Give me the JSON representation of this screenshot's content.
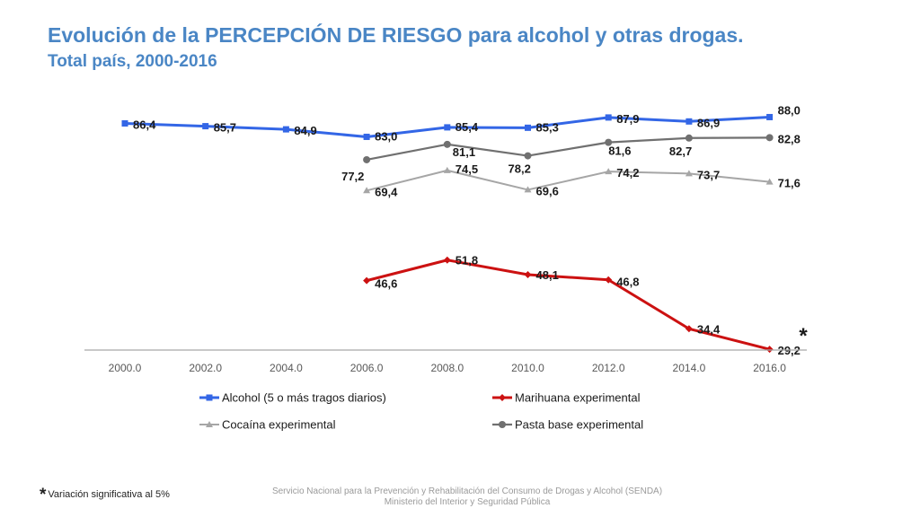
{
  "header": {
    "title": "Evolución de la PERCEPCIÓN DE RIESGO para alcohol y otras drogas.",
    "subtitle": "Total país, 2000-2016"
  },
  "chart_data": {
    "type": "line",
    "title": "Evolución de la PERCEPCIÓN DE RIESGO para alcohol y otras drogas.",
    "subtitle": "Total país, 2000-2016",
    "categories": [
      "2000.0",
      "2002.0",
      "2004.0",
      "2006.0",
      "2008.0",
      "2010.0",
      "2012.0",
      "2014.0",
      "2016.0"
    ],
    "xlabel": "",
    "ylabel": "",
    "ylim": [
      25,
      90
    ],
    "grid": false,
    "legend_position": "bottom",
    "series": [
      {
        "name": "Alcohol (5 o más tragos diarios)",
        "color": "#3366e6",
        "marker": "square",
        "values": [
          86.4,
          85.7,
          84.9,
          83.0,
          85.4,
          85.3,
          87.9,
          86.9,
          88.0
        ],
        "labels": [
          "86,4",
          "85,7",
          "84,9",
          "83,0",
          "85,4",
          "85,3",
          "87,9",
          "86,9",
          "88,0"
        ]
      },
      {
        "name": "Marihuana experimental",
        "color": "#cc1111",
        "marker": "diamond",
        "values": [
          null,
          null,
          null,
          46.6,
          51.8,
          48.1,
          46.8,
          34.4,
          29.2
        ],
        "labels": [
          null,
          null,
          null,
          "46,6",
          "51,8",
          "48,1",
          "46,8",
          "34,4",
          "29,2"
        ]
      },
      {
        "name": "Cocaína experimental",
        "color": "#a6a6a6",
        "marker": "triangle",
        "values": [
          null,
          null,
          null,
          69.4,
          74.5,
          69.6,
          74.2,
          73.7,
          71.6
        ],
        "labels": [
          null,
          null,
          null,
          "69,4",
          "74,5",
          "69,6",
          "74,2",
          "73,7",
          "71,6"
        ]
      },
      {
        "name": "Pasta base experimental",
        "color": "#707070",
        "marker": "circle",
        "values": [
          null,
          null,
          null,
          77.2,
          81.1,
          78.2,
          81.6,
          82.7,
          82.8
        ],
        "labels": [
          null,
          null,
          null,
          "77,2",
          "81,1",
          "78,2",
          "81,6",
          "82,7",
          "82,8"
        ]
      }
    ],
    "annotations": [
      {
        "text": "*",
        "near": "Marihuana experimental 2016"
      }
    ]
  },
  "footnote": {
    "symbol": "*",
    "text": "Variación significativa al 5%"
  },
  "source": {
    "line1": "Servicio Nacional para la Prevención y Rehabilitación del Consumo de Drogas y Alcohol (SENDA)",
    "line2": "Ministerio del Interior y Seguridad Pública"
  }
}
